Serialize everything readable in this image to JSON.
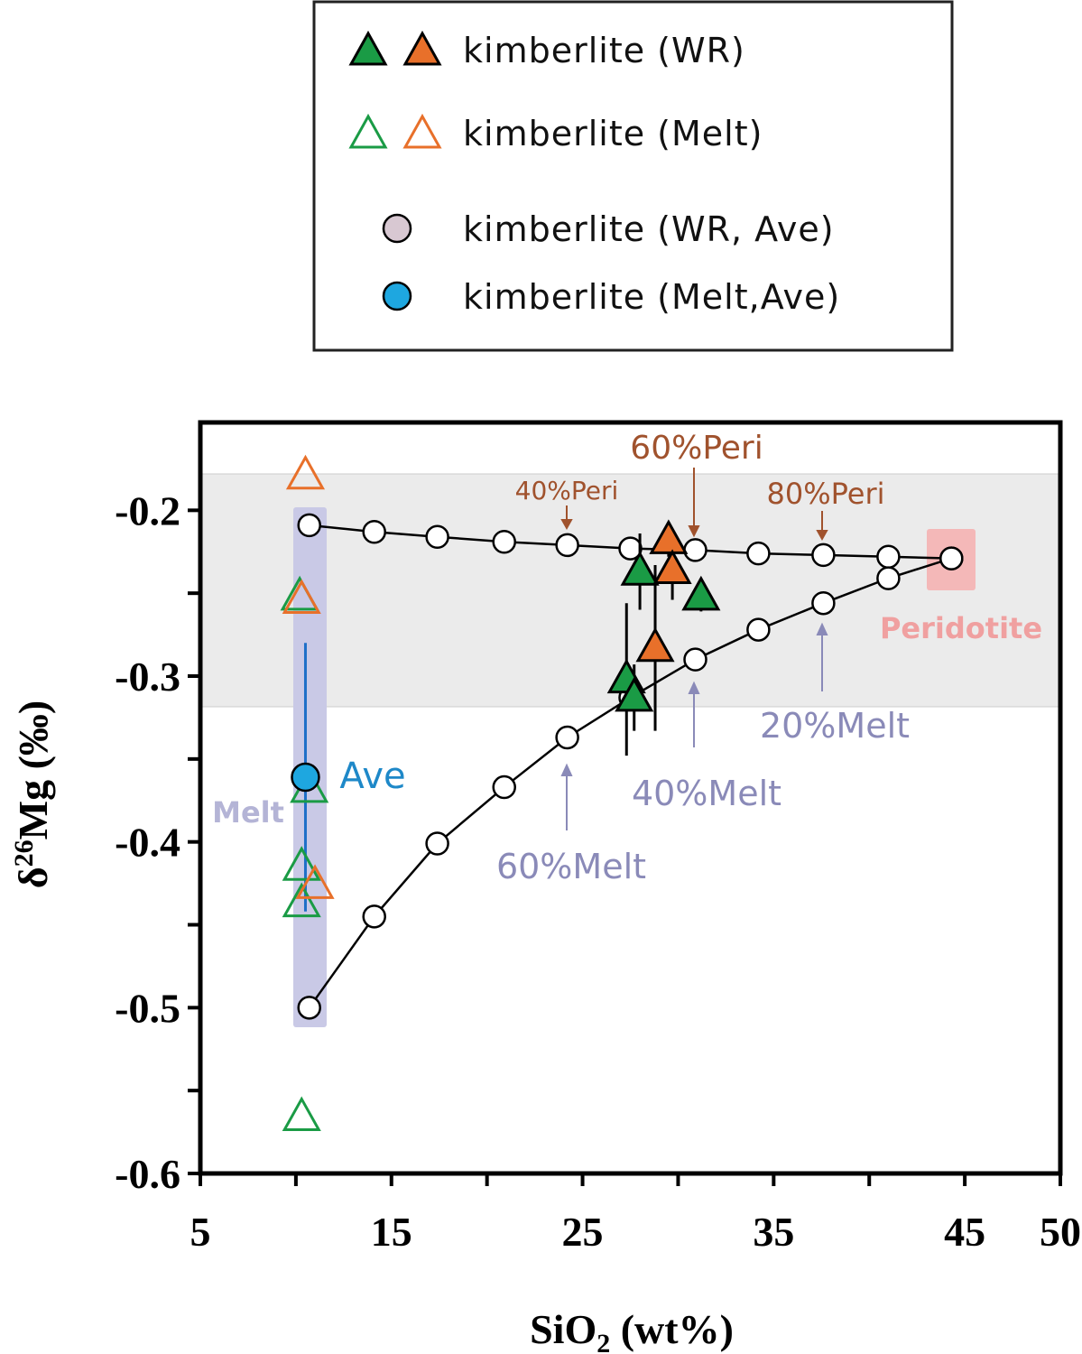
{
  "chart_data": {
    "type": "scatter",
    "x_label": [
      "SiO",
      "2",
      " (wt%)"
    ],
    "y_label": [
      "δ",
      "26",
      "Mg (‰)"
    ],
    "xlim": [
      5,
      50
    ],
    "xticks": [
      5,
      15,
      25,
      35,
      45,
      50
    ],
    "xminorticks": [
      10,
      20,
      30,
      40
    ],
    "ylim": [
      -0.6,
      -0.147
    ],
    "yticks": [
      -0.2,
      -0.3,
      -0.4,
      -0.5,
      -0.6
    ],
    "yminorticks": [
      -0.25,
      -0.35,
      -0.45,
      -0.55
    ],
    "legend": [
      {
        "label": "kimberlite (WR)",
        "markers": [
          {
            "shape": "triangle",
            "fill": "#1a9b45",
            "stroke": "#000"
          },
          {
            "shape": "triangle",
            "fill": "#e8702a",
            "stroke": "#000"
          }
        ]
      },
      {
        "label": "kimberlite (Melt)",
        "markers": [
          {
            "shape": "triangle",
            "fill": "none",
            "stroke": "#1a9b45"
          },
          {
            "shape": "triangle",
            "fill": "none",
            "stroke": "#e8702a"
          }
        ]
      },
      {
        "label": "kimberlite (WR, Ave)",
        "markers": [
          {
            "shape": "circle",
            "fill": "#d8c8d2",
            "stroke": "#000"
          }
        ]
      },
      {
        "label": "kimberlite (Melt,Ave)",
        "markers": [
          {
            "shape": "circle",
            "fill": "#1ea7e0",
            "stroke": "#000"
          }
        ]
      }
    ],
    "curves": [
      {
        "x": [
          10.7,
          14.1,
          17.4,
          20.9,
          24.2,
          27.5,
          30.9,
          34.2,
          37.6,
          41.0,
          44.3
        ],
        "y": [
          -0.209,
          -0.213,
          -0.216,
          -0.219,
          -0.221,
          -0.223,
          -0.224,
          -0.226,
          -0.227,
          -0.228,
          -0.229
        ]
      },
      {
        "x": [
          10.7,
          14.1,
          17.4,
          20.9,
          24.2,
          27.5,
          30.9,
          34.2,
          37.6,
          41.0,
          44.3
        ],
        "y": [
          -0.5,
          -0.445,
          -0.401,
          -0.367,
          -0.337,
          -0.313,
          -0.29,
          -0.272,
          -0.256,
          -0.241,
          -0.229
        ]
      }
    ],
    "series": [
      {
        "marker": "triangle",
        "fill": "none",
        "color": "#1a9b45",
        "x": [
          10.2,
          10.7,
          10.3,
          10.3,
          10.3
        ],
        "y": [
          -0.252,
          -0.368,
          -0.415,
          -0.437,
          -0.566
        ]
      },
      {
        "marker": "triangle",
        "fill": "none",
        "color": "#e8702a",
        "x": [
          10.5,
          10.3,
          11.0
        ],
        "y": [
          -0.179,
          -0.254,
          -0.426
        ]
      },
      {
        "marker": "triangle",
        "fill": "#1a9b45",
        "color": "#000",
        "x": [
          28.0,
          31.2,
          27.3,
          27.7
        ],
        "y": [
          -0.237,
          -0.252,
          -0.302,
          -0.313
        ],
        "error": [
          0.023,
          0.009,
          0.046,
          0.02
        ]
      },
      {
        "marker": "triangle",
        "fill": "#e8702a",
        "color": "#000",
        "x": [
          29.5,
          29.7,
          28.8
        ],
        "y": [
          -0.218,
          -0.236,
          -0.283
        ],
        "error": [
          0.01,
          0.018,
          0.05
        ]
      },
      {
        "marker": "circle",
        "fill": "#1ea7e0",
        "color": "#000",
        "errcolor": "#1e6fc8",
        "x": [
          10.5
        ],
        "y": [
          -0.361
        ],
        "error": [
          0.081
        ]
      }
    ],
    "annotations": [
      "40%Peri",
      "60%Peri",
      "80%Peri",
      "20%Melt",
      "40%Melt",
      "60%Melt",
      "Ave",
      "Melt",
      "Peridotite"
    ]
  }
}
